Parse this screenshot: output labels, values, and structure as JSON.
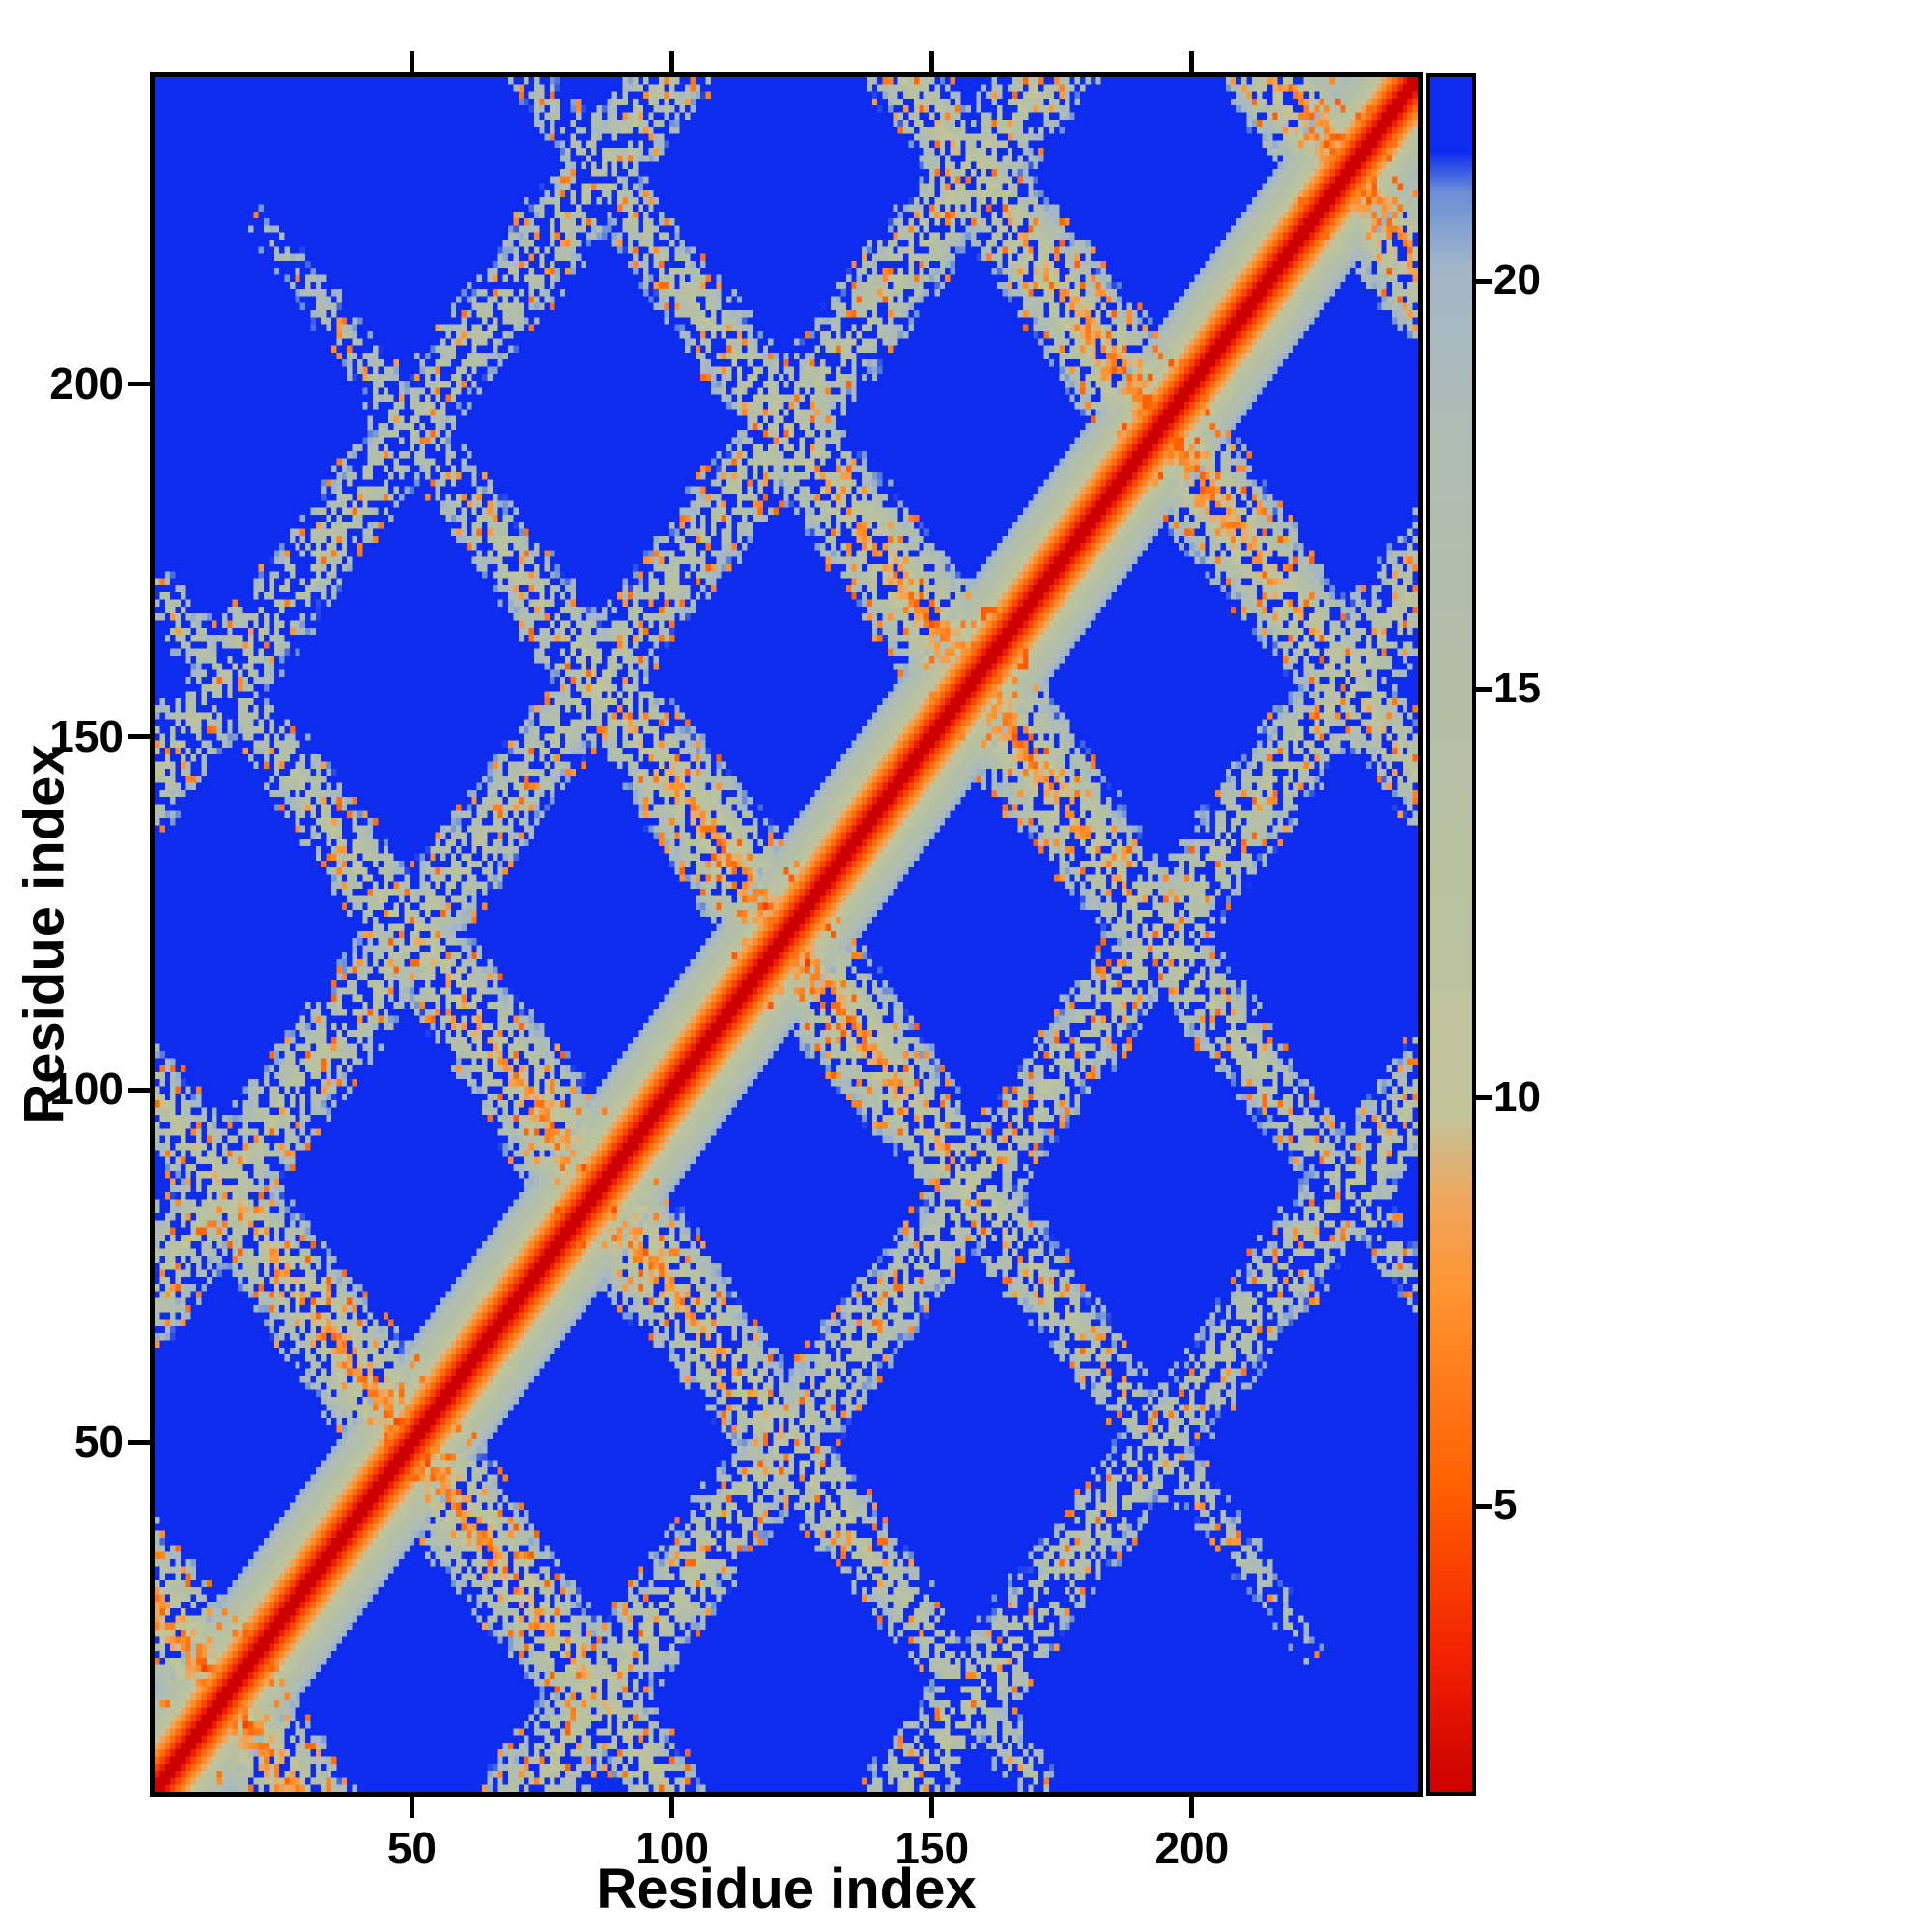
{
  "chart_data": {
    "type": "heatmap",
    "title": "",
    "xlabel": "Residue index",
    "ylabel": "Residue index",
    "x_range": [
      1,
      243
    ],
    "y_range": [
      1,
      243
    ],
    "x_ticks": [
      50,
      100,
      150,
      200
    ],
    "y_ticks": [
      50,
      100,
      150,
      200
    ],
    "grid": false,
    "colorbar": {
      "position": "right",
      "ticks": [
        5,
        10,
        15,
        20
      ],
      "vmin": 1.5,
      "vmax": 22.5
    },
    "colormap_stops": [
      [
        1.5,
        "#cc0000"
      ],
      [
        3.2,
        "#f32300"
      ],
      [
        5.2,
        "#ff5f00"
      ],
      [
        7.6,
        "#ff9430"
      ],
      [
        8.8,
        "#eea860"
      ],
      [
        9.8,
        "#c2c49a"
      ],
      [
        14.0,
        "#b5c0a4"
      ],
      [
        18.0,
        "#b0bdb2"
      ],
      [
        20.2,
        "#a2b6c8"
      ],
      [
        21.1,
        "#6b8fd8"
      ],
      [
        21.6,
        "#0e2cf0"
      ],
      [
        22.5,
        "#0e2cf0"
      ]
    ],
    "matrix_model": {
      "n": 243,
      "background_value": 22.5,
      "backbone_slope": 1.45,
      "fold_points": [
        14,
        50,
        86,
        122,
        158,
        194,
        230
      ],
      "hairpin": {
        "halfwidth": 15,
        "base": 5.5,
        "perp_slope": 1.15,
        "len_slope": 0.06,
        "max_sep": 205
      },
      "parallel_offsets": [
        72,
        144
      ],
      "parallel": {
        "halfwidth": 11,
        "base": 10.5,
        "slope": 0.95
      },
      "noise": {
        "amp": 5,
        "speckle_prob": 0.1,
        "speckle_low": 4.2,
        "speckle_span": 4,
        "gap_prob_base": 0.18,
        "gap_prob_slope": 0.0016
      }
    }
  }
}
